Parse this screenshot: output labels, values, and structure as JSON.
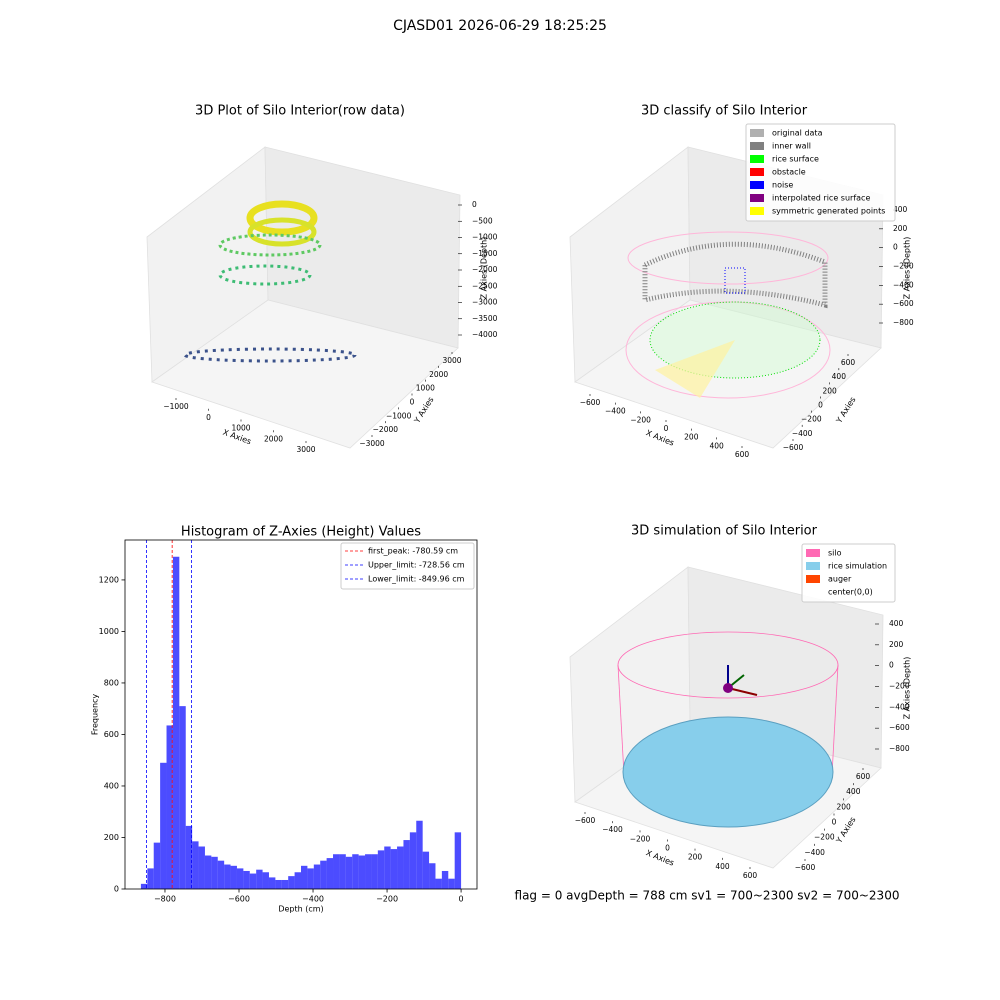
{
  "title": "CJASD01 2026-06-29 18:25:25",
  "status_text": "flag = 0     avgDepth = 788 cm  sv1 = 700~2300  sv2 = 700~2300",
  "chart_data": [
    {
      "type": "scatter3d",
      "title": "3D Plot of Silo Interior(row data)",
      "xlabel": "X Axies",
      "ylabel": "Y Axies",
      "zlabel": "Z Axies (Depth)",
      "xticks": [
        {
          "value": -1000,
          "label": "−1000"
        },
        0,
        1000,
        2000,
        3000
      ],
      "yticks": [
        {
          "value": -3000,
          "label": "−3000"
        },
        {
          "value": -2000,
          "label": "−2000"
        },
        {
          "value": -1000,
          "label": "−1000"
        },
        0,
        1000,
        2000,
        3000
      ],
      "zticks": [
        0,
        {
          "value": -500,
          "label": "−500"
        },
        {
          "value": -1000,
          "label": "−1000"
        },
        {
          "value": -1500,
          "label": "−1500"
        },
        {
          "value": -2000,
          "label": "−2000"
        },
        {
          "value": -2500,
          "label": "−2500"
        },
        {
          "value": -3000,
          "label": "−3000"
        },
        {
          "value": -3500,
          "label": "−3500"
        },
        {
          "value": -4000,
          "label": "−4000"
        }
      ]
    },
    {
      "type": "scatter3d",
      "title": "3D classify of Silo Interior",
      "xlabel": "X Axies",
      "ylabel": "Y Axies",
      "zlabel": "Z Axies (Depth)",
      "xticks": [
        {
          "value": -600,
          "label": "−600"
        },
        {
          "value": -400,
          "label": "−400"
        },
        {
          "value": -200,
          "label": "−200"
        },
        0,
        200,
        400,
        600
      ],
      "yticks": [
        {
          "value": -600,
          "label": "−600"
        },
        {
          "value": -400,
          "label": "−400"
        },
        {
          "value": -200,
          "label": "−200"
        },
        0,
        200,
        400,
        600
      ],
      "zticks": [
        400,
        200,
        0,
        {
          "value": -200,
          "label": "−200"
        },
        {
          "value": -400,
          "label": "−400"
        },
        {
          "value": -600,
          "label": "−600"
        },
        {
          "value": -800,
          "label": "−800"
        }
      ],
      "legend": [
        {
          "name": "original data",
          "color": "#b0b0b0"
        },
        {
          "name": "inner wall",
          "color": "#808080"
        },
        {
          "name": "rice surface",
          "color": "#00ff00"
        },
        {
          "name": "obstacle",
          "color": "#ff0000"
        },
        {
          "name": "noise",
          "color": "#0000ff"
        },
        {
          "name": "interpolated rice surface",
          "color": "#800080"
        },
        {
          "name": "symmetric generated points",
          "color": "#ffff00"
        }
      ]
    },
    {
      "type": "surface3d",
      "title": "3D simulation of Silo Interior",
      "xlabel": "X Axies",
      "ylabel": "Y Axies",
      "zlabel": "Z Axies (Depth)",
      "xticks": [
        {
          "value": -600,
          "label": "−600"
        },
        {
          "value": -400,
          "label": "−400"
        },
        {
          "value": -200,
          "label": "−200"
        },
        0,
        200,
        400,
        600
      ],
      "yticks": [
        {
          "value": -600,
          "label": "−600"
        },
        {
          "value": -400,
          "label": "−400"
        },
        {
          "value": -200,
          "label": "−200"
        },
        0,
        200,
        400,
        600
      ],
      "zticks": [
        400,
        200,
        0,
        {
          "value": -200,
          "label": "−200"
        },
        {
          "value": -400,
          "label": "−400"
        },
        {
          "value": -600,
          "label": "−600"
        },
        {
          "value": -800,
          "label": "−800"
        }
      ],
      "legend": [
        {
          "name": "silo",
          "color": "#ff69b4"
        },
        {
          "name": "rice simulation",
          "color": "#87ceeb"
        },
        {
          "name": "auger",
          "color": "#ff4500"
        },
        {
          "name": "center(0,0)",
          "color": "#ffffff"
        }
      ]
    },
    {
      "type": "histogram",
      "title": "Histogram of Z-Axies (Height) Values",
      "xlabel": "Depth (cm)",
      "ylabel": "Frequency",
      "color": "#0000ff",
      "alpha": 0.7,
      "bins": [
        -865,
        -847.7,
        -830.4,
        -813.1,
        -795.8,
        -778.5,
        -761.2,
        -743.9,
        -726.6,
        -709.3,
        -692,
        -674.7,
        -657.4,
        -640.1,
        -622.8,
        -605.5,
        -588.2,
        -570.9,
        -553.6,
        -536.3,
        -519,
        -501.7,
        -484.4,
        -467.1,
        -449.8,
        -432.5,
        -415.2,
        -397.9,
        -380.6,
        -363.3,
        -346,
        -328.7,
        -311.4,
        -294.1,
        -276.8,
        -259.5,
        -242.2,
        -224.9,
        -207.6,
        -190.3,
        -173,
        -155.7,
        -138.4,
        -121.1,
        -103.8,
        -86.5,
        -69.2,
        -51.9,
        -34.6,
        -17.3,
        0
      ],
      "values": [
        20,
        80,
        180,
        490,
        635,
        1290,
        710,
        245,
        185,
        165,
        130,
        125,
        110,
        95,
        90,
        80,
        70,
        60,
        75,
        65,
        45,
        35,
        35,
        50,
        65,
        90,
        80,
        95,
        110,
        120,
        135,
        135,
        125,
        135,
        130,
        135,
        135,
        150,
        165,
        155,
        165,
        190,
        220,
        265,
        145,
        100,
        40,
        70,
        40,
        220
      ],
      "xlim": [
        -908,
        43
      ],
      "ylim": [
        0,
        1355
      ],
      "xticks": [
        {
          "value": -800,
          "label": "−800"
        },
        {
          "value": -600,
          "label": "−600"
        },
        {
          "value": -400,
          "label": "−400"
        },
        {
          "value": -200,
          "label": "−200"
        },
        0
      ],
      "yticks": [
        0,
        200,
        400,
        600,
        800,
        1000,
        1200
      ],
      "lines": [
        {
          "name": "first_peak: -780.59 cm",
          "value": -780.59,
          "color": "#ff0000"
        },
        {
          "name": "Upper_limit: -728.56 cm",
          "value": -728.56,
          "color": "#0000ff"
        },
        {
          "name": "Lower_limit: -849.96 cm",
          "value": -849.96,
          "color": "#0000ff"
        }
      ]
    }
  ]
}
